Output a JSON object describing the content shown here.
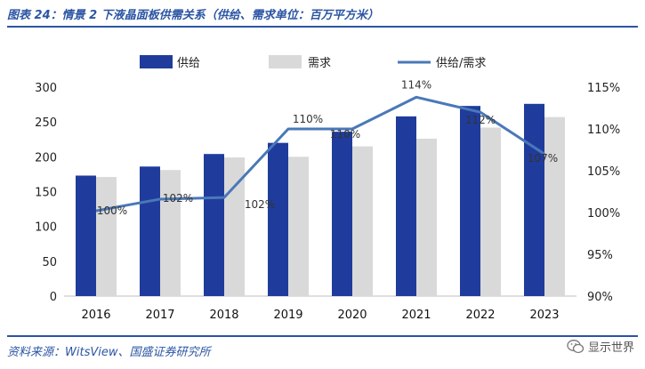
{
  "header": {
    "title": "图表 24：情景 2 下液晶面板供需关系（供给、需求单位：百万平方米）"
  },
  "footer": {
    "source": "资料来源：WitsView、国盛证券研究所",
    "watermark": "显示世界"
  },
  "colors": {
    "supply": "#1f3c9c",
    "demand": "#d9d9d9",
    "ratio": "#4a78b8"
  },
  "chart_data": {
    "type": "bar",
    "categories": [
      "2016",
      "2017",
      "2018",
      "2019",
      "2020",
      "2021",
      "2022",
      "2023"
    ],
    "series": [
      {
        "name": "供给",
        "type": "bar",
        "values": [
          173,
          186,
          204,
          220,
          236,
          258,
          273,
          276
        ]
      },
      {
        "name": "需求",
        "type": "bar",
        "values": [
          171,
          181,
          199,
          200,
          215,
          226,
          242,
          257
        ]
      },
      {
        "name": "供给/需求",
        "type": "line",
        "axis": "right",
        "values": [
          100.2,
          101.6,
          101.8,
          110.0,
          110.0,
          113.8,
          112.0,
          107.0
        ],
        "labels": [
          "100%",
          "102%",
          "102%",
          "110%",
          "110%",
          "114%",
          "112%",
          "107%"
        ]
      }
    ],
    "ylim_left": [
      0,
      300
    ],
    "yticks_left": [
      "0",
      "50",
      "100",
      "150",
      "200",
      "250",
      "300"
    ],
    "ylim_right": [
      90,
      115
    ],
    "yticks_right": [
      "90%",
      "95%",
      "100%",
      "105%",
      "110%",
      "115%"
    ],
    "legend": "top",
    "grid": false
  }
}
